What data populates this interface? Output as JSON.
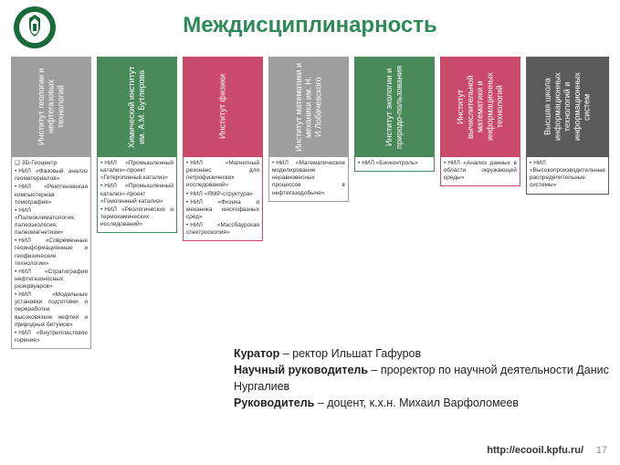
{
  "title": "Междисциплинарность",
  "title_color": "#2e8b57",
  "logo": {
    "ring_color": "#1a6b3a",
    "ring_bg": "#ffffff"
  },
  "columns": [
    {
      "name": "Институт геологии и нефтегазовых технологий",
      "color": "#9e9e9e",
      "items_special_first": true,
      "items": [
        "3D-Геоцентр",
        "НИЛ «Фазовый анализ геоматериалов»",
        "НИЛ «Рентгеновская компьютерная томография»",
        "НИЛ «Палеоклиматология, палеоэкология, палеомагнетизм»",
        "НИЛ «Современные геоинформационные и геофизические технологии»",
        "НИЛ «Стратиграфия нефтегазоносных резервуаров»",
        "НИЛ «Модельные установки подготовки и переработки высоковязких нефтей и природных битумов»",
        "НИЛ «Внутрипластовое горение»"
      ]
    },
    {
      "name": "Химический институт им. А.М. Бутлерова",
      "color": "#4a8a5a",
      "items": [
        "НИЛ «Промышленный катализ»-проект «Гетерогенный катализ»",
        "НИЛ «Промышленный катализ»-проект «Гомогенный катализ»",
        "НИЛ «Реологических и термохимических исследований»"
      ]
    },
    {
      "name": "Институт физики",
      "color": "#c94a6a",
      "items": [
        "НИЛ «Магнитный резонанс для петрофизических исследований»",
        "НИЛ «ЯМР-структура»",
        "НИЛ «Физика и механика многофазных сред»",
        "НИЛ «Мэссбаурская спектроскопия»"
      ]
    },
    {
      "name": "Институт математики и механики им. Н. И.Лобачевского",
      "color": "#9e9e9e",
      "items": [
        "НИЛ «Математическое моделирование неравновесных процессов в нефтегазодобыче»"
      ]
    },
    {
      "name": "Институт экологии и природо-пользования",
      "color": "#4a8a5a",
      "items": [
        "НИЛ «Биоконтроль»"
      ]
    },
    {
      "name": "Институт вычислительной математики и информационных технологий",
      "color": "#c94a6a",
      "items": [
        "НИЛ «Анализ данных в области окружающей среды»"
      ]
    },
    {
      "name": "Высшая школа информационных технологий и информационных систем",
      "color": "#5a5a5a",
      "items": [
        "НИЛ «Высокопроизводительные распределительные системы»"
      ]
    }
  ],
  "info": [
    {
      "label": "Куратор",
      "text": " – ректор Ильшат Гафуров"
    },
    {
      "label": "Научный руководитель",
      "text": " – проректор по научной деятельности Данис Нургалиев"
    },
    {
      "label": "Руководитель",
      "text": " – доцент, к.х.н. Михаил Варфоломеев"
    }
  ],
  "footer_url": "http://ecooil.kpfu.ru/",
  "page_number": "17"
}
